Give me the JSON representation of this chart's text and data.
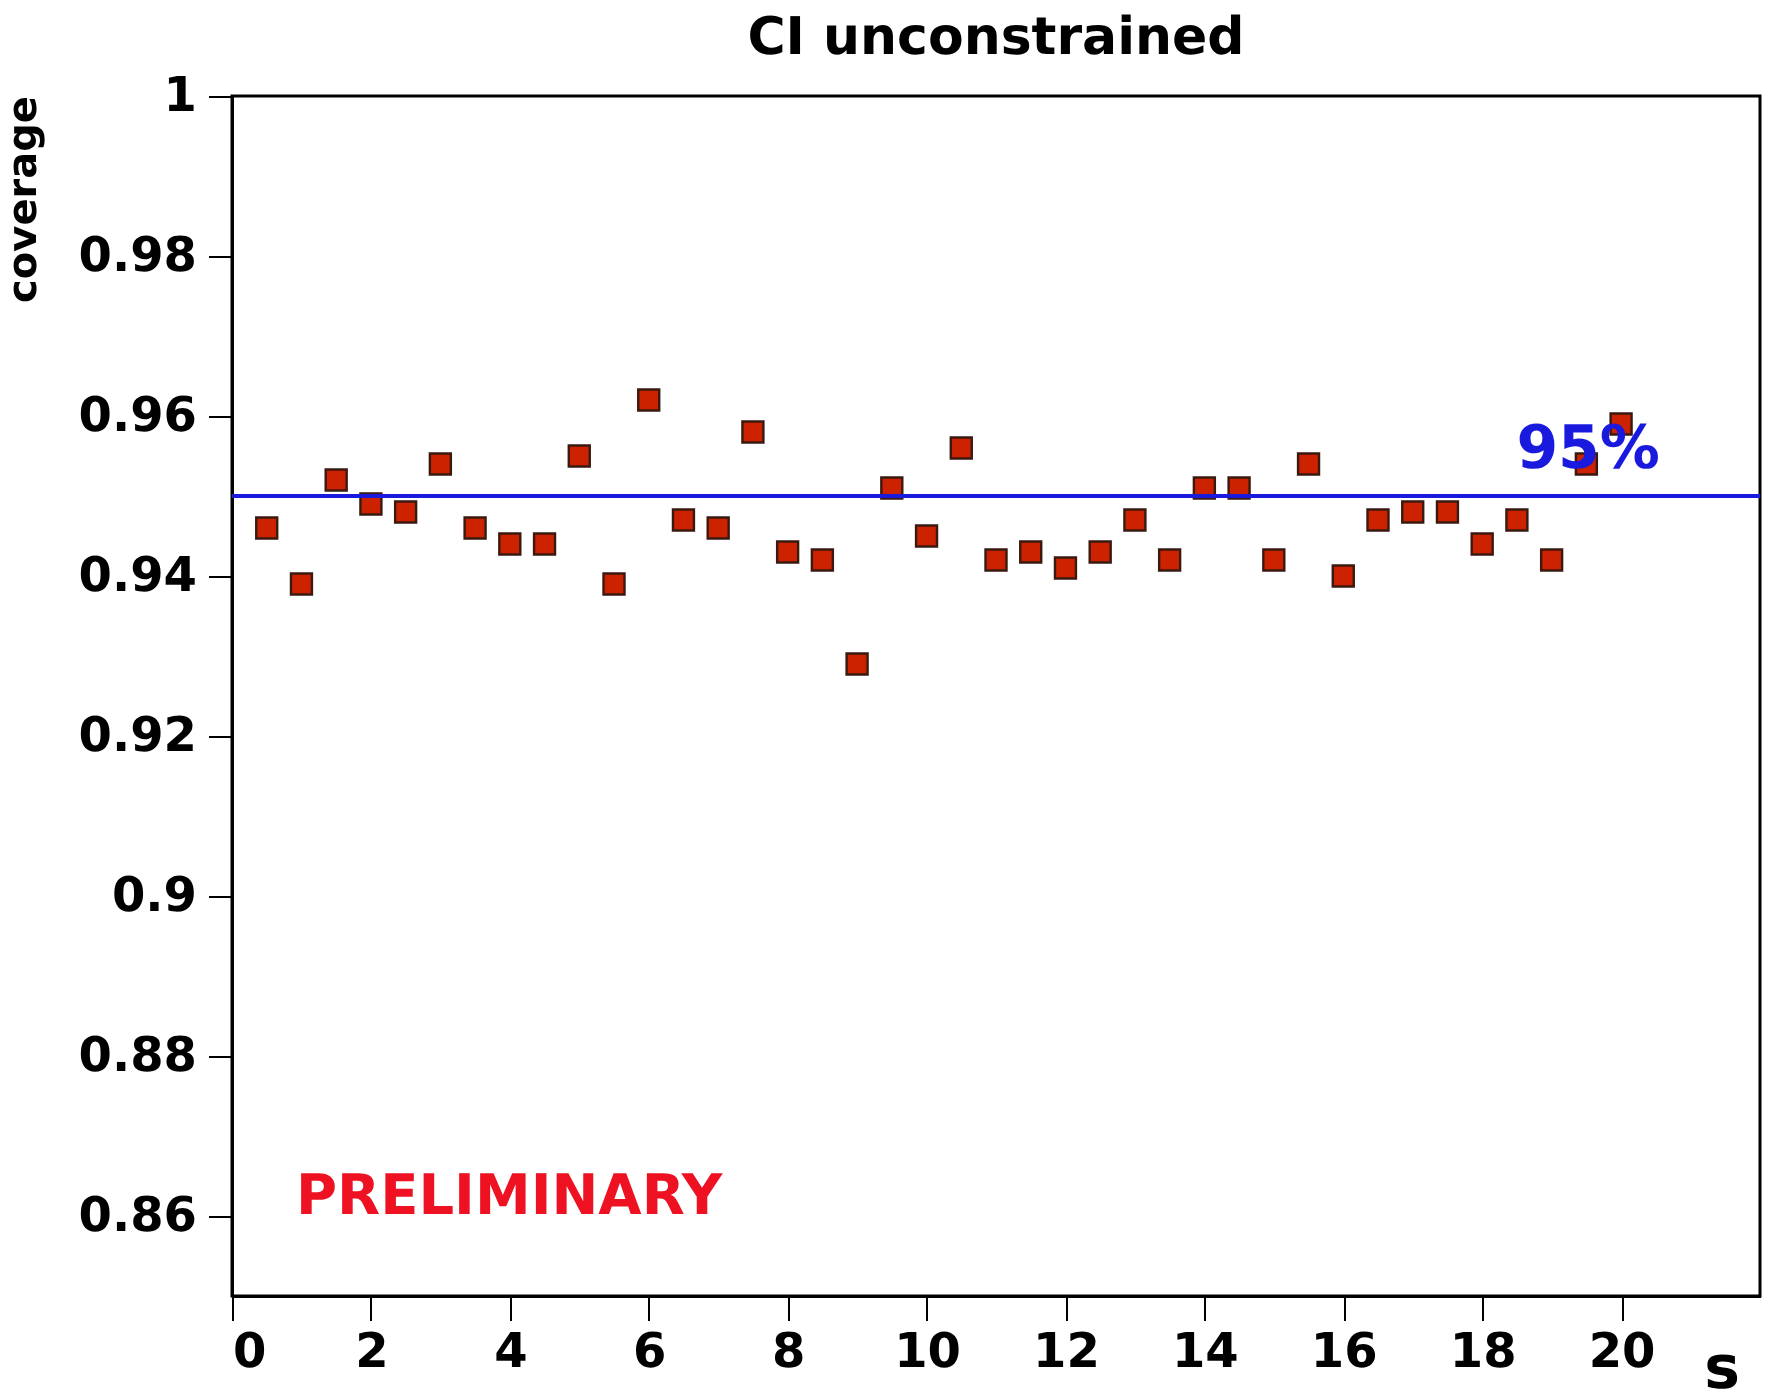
{
  "chart_data": {
    "type": "scatter",
    "title": "CI unconstrained",
    "xlabel": "s",
    "ylabel": "coverage",
    "x": [
      0.5,
      1,
      1.5,
      2,
      2.5,
      3,
      3.5,
      4,
      4.5,
      5,
      5.5,
      6,
      6.5,
      7,
      7.5,
      8,
      8.5,
      9,
      9.5,
      10,
      10.5,
      11,
      11.5,
      12,
      12.5,
      13,
      13.5,
      14,
      14.5,
      15,
      15.5,
      16,
      16.5,
      17,
      17.5,
      18,
      18.5,
      19,
      19.5,
      20
    ],
    "series": [
      {
        "color": "#cc2200",
        "values": [
          0.946,
          0.939,
          0.952,
          0.949,
          0.948,
          0.954,
          0.946,
          0.944,
          0.944,
          0.955,
          0.939,
          0.962,
          0.947,
          0.946,
          0.958,
          0.943,
          0.942,
          0.929,
          0.951,
          0.945,
          0.956,
          0.942,
          0.943,
          0.941,
          0.943,
          0.947,
          0.942,
          0.951,
          0.951,
          0.942,
          0.954,
          0.94,
          0.947,
          0.948,
          0.948,
          0.944,
          0.947,
          0.942,
          0.954,
          0.959
        ]
      }
    ],
    "marker": "square",
    "xlim": [
      0,
      22
    ],
    "ylim": [
      0.85,
      1
    ],
    "xticks": [
      0,
      2,
      4,
      6,
      8,
      10,
      12,
      14,
      16,
      18,
      20
    ],
    "yticks": [
      0.86,
      0.88,
      {
        "value": 0.9,
        "label": "0.9"
      },
      0.92,
      0.94,
      0.96,
      0.98,
      {
        "value": 1,
        "label": "1"
      }
    ],
    "ref_lines": [
      {
        "axis": "y",
        "value": 0.95,
        "label": "95%",
        "color": "#1a1adf"
      }
    ],
    "annotations": [
      "PRELIMINARY"
    ],
    "grid": false
  }
}
